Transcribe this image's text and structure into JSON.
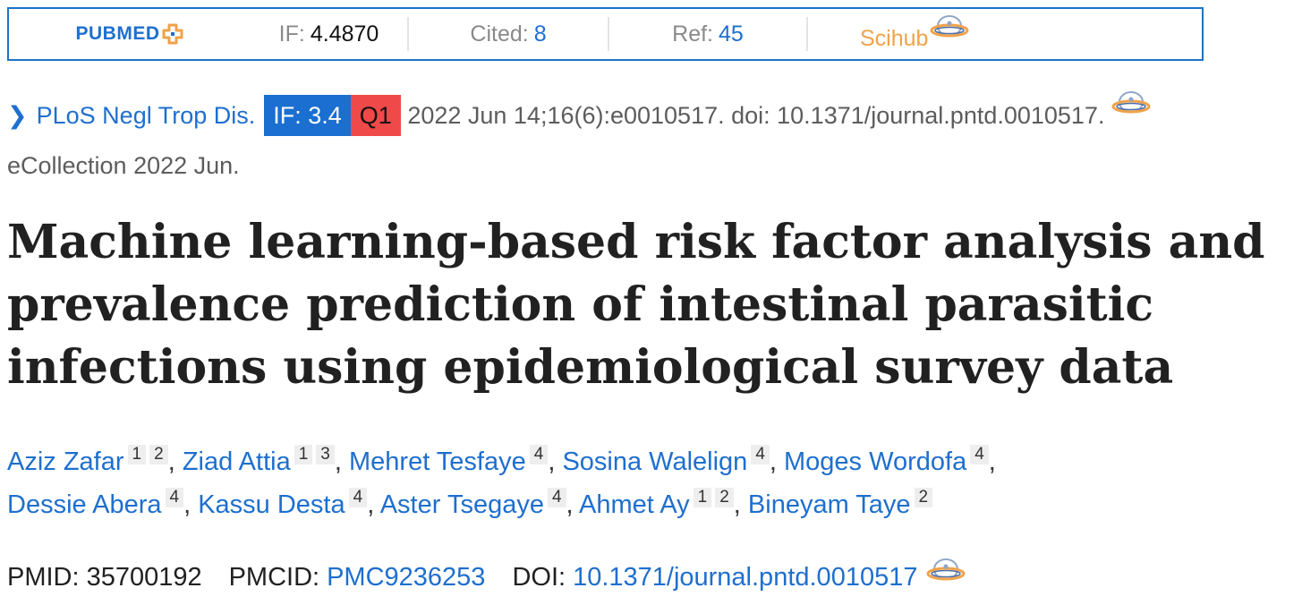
{
  "extension_bar": {
    "logo_text": "PUBMED",
    "if_label": "IF:",
    "if_value": "4.4870",
    "cited_label": "Cited:",
    "cited_value": "8",
    "ref_label": "Ref:",
    "ref_value": "45",
    "scihub_label": "Scihub",
    "colors": {
      "border": "#1a73c7",
      "logo": "#1e6fce",
      "scihub": "#f0a24a"
    }
  },
  "citation": {
    "journal": "PLoS Negl Trop Dis.",
    "if_badge": "IF: 3.4",
    "quartile_badge": "Q1",
    "details": "2022 Jun 14;16(6):e0010517. doi: 10.1371/journal.pntd.0010517.",
    "ecollection": "eCollection 2022 Jun.",
    "colors": {
      "if_badge": "#1a6fd0",
      "quartile_badge": "#f04949"
    }
  },
  "article": {
    "title": "Machine learning-based risk factor analysis and prevalence prediction of intestinal parasitic infections using epidemiological survey data"
  },
  "authors": [
    {
      "name": "Aziz Zafar",
      "affiliations": [
        "1",
        "2"
      ]
    },
    {
      "name": "Ziad Attia",
      "affiliations": [
        "1",
        "3"
      ]
    },
    {
      "name": "Mehret Tesfaye",
      "affiliations": [
        "4"
      ]
    },
    {
      "name": "Sosina Walelign",
      "affiliations": [
        "4"
      ]
    },
    {
      "name": "Moges Wordofa",
      "affiliations": [
        "4"
      ]
    },
    {
      "name": "Dessie Abera",
      "affiliations": [
        "4"
      ]
    },
    {
      "name": "Kassu Desta",
      "affiliations": [
        "4"
      ]
    },
    {
      "name": "Aster Tsegaye",
      "affiliations": [
        "4"
      ]
    },
    {
      "name": "Ahmet Ay",
      "affiliations": [
        "1",
        "2"
      ]
    },
    {
      "name": "Bineyam Taye",
      "affiliations": [
        "2"
      ]
    }
  ],
  "identifiers": {
    "pmid_label": "PMID:",
    "pmid": "35700192",
    "pmcid_label": "PMCID:",
    "pmcid": "PMC9236253",
    "doi_label": "DOI:",
    "doi": "10.1371/journal.pntd.0010517"
  },
  "icons": [
    "plus-icon",
    "scihub-icon",
    "chevron-right-icon"
  ]
}
